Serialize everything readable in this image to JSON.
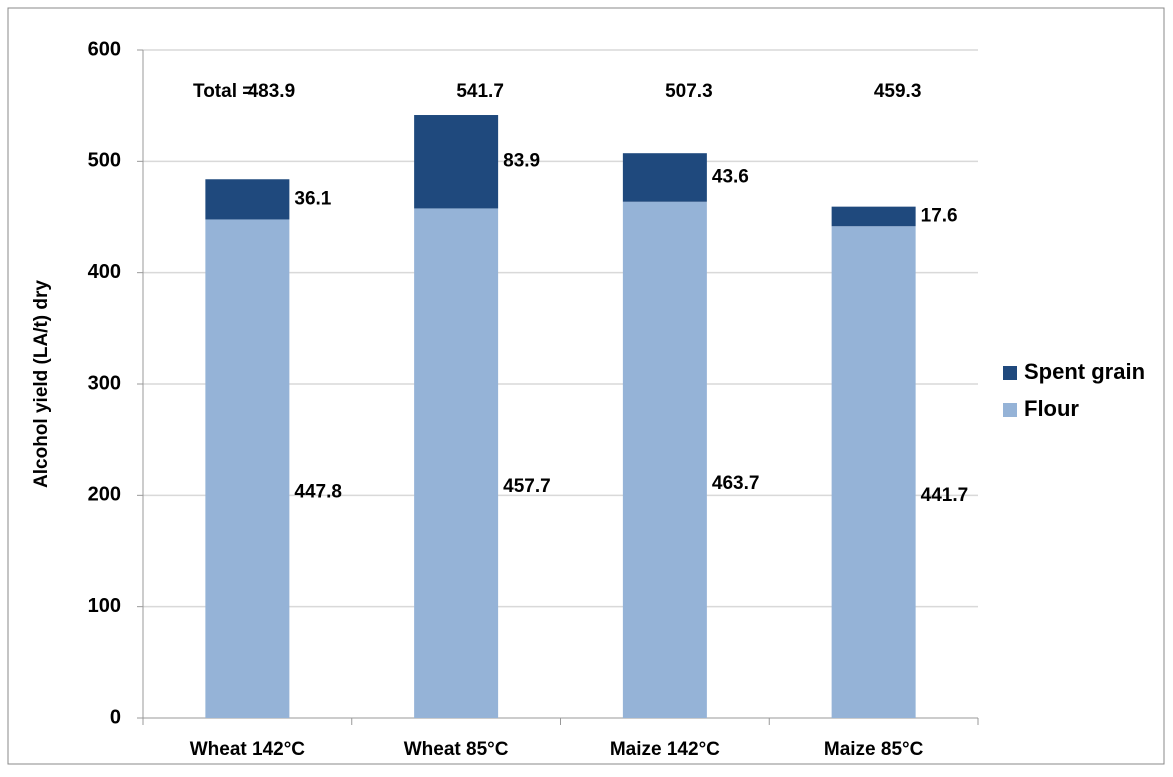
{
  "chart_data": {
    "type": "stacked_bar",
    "y_label": "Alcohol yield (LA/t) dry",
    "categories": [
      "Wheat 142°C",
      "Wheat 85°C",
      "Maize 142°C",
      "Maize 85°C"
    ],
    "series": [
      {
        "name": "Flour",
        "color": "#95b3d7",
        "values": [
          447.8,
          457.7,
          463.7,
          441.7
        ]
      },
      {
        "name": "Spent grain",
        "color": "#1f497d",
        "values": [
          36.1,
          83.9,
          43.6,
          17.6
        ]
      }
    ],
    "totals_label": "Total =",
    "totals": [
      483.9,
      541.7,
      507.3,
      459.3
    ],
    "ylim": [
      0,
      600
    ],
    "yticks": [
      0,
      100,
      200,
      300,
      400,
      500,
      600
    ],
    "grid": true,
    "legend": "right"
  }
}
